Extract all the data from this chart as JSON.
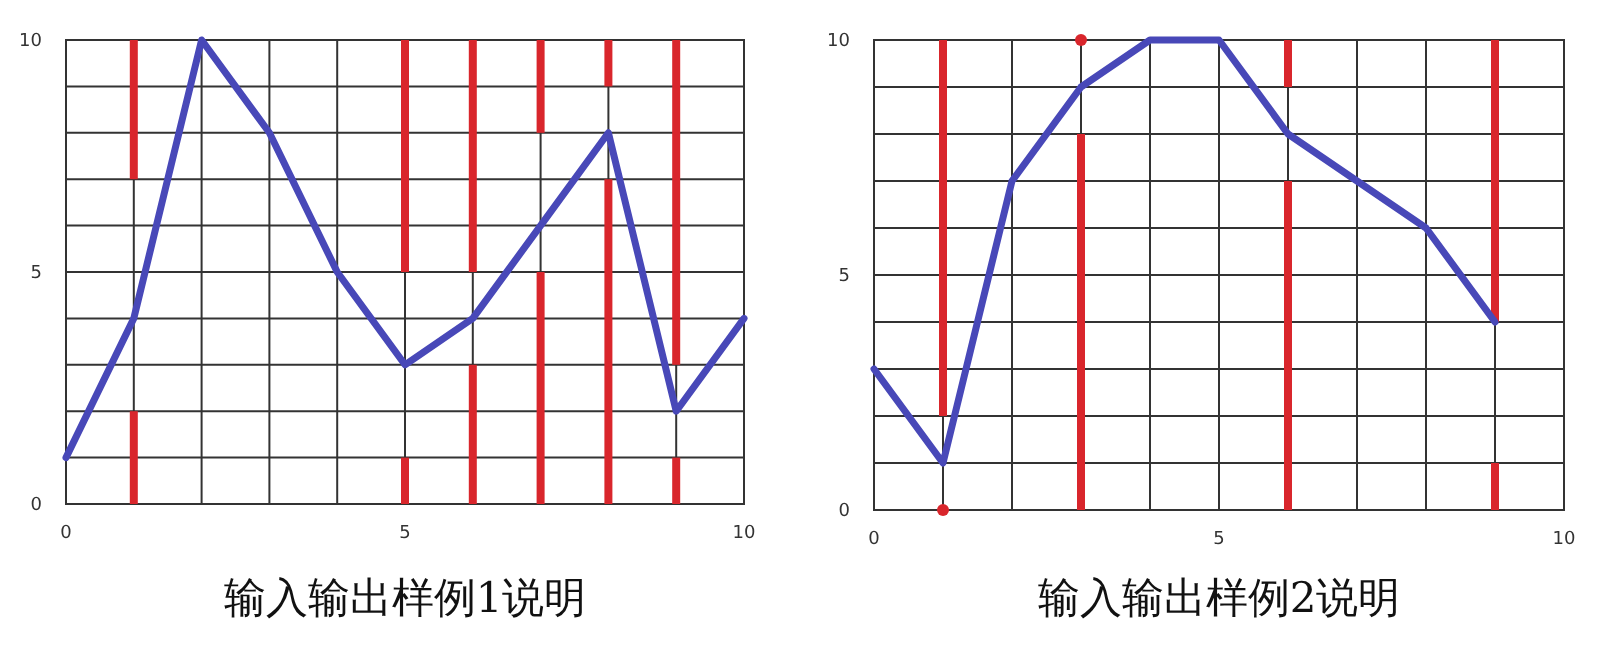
{
  "chart_data": [
    {
      "type": "line",
      "title": "输入输出样例1说明",
      "xlim": [
        0,
        10
      ],
      "ylim": [
        0,
        10
      ],
      "xticks": [
        0,
        {
          "value": 1,
          "label": null
        },
        {
          "value": 2,
          "label": null
        },
        {
          "value": 3,
          "label": null
        },
        {
          "value": 4,
          "label": null
        },
        5,
        {
          "value": 6,
          "label": null
        },
        {
          "value": 7,
          "label": null
        },
        {
          "value": 8,
          "label": null
        },
        {
          "value": 9,
          "label": null
        },
        10
      ],
      "yticks": [
        0,
        {
          "value": 1,
          "label": null
        },
        {
          "value": 2,
          "label": null
        },
        {
          "value": 3,
          "label": null
        },
        {
          "value": 4,
          "label": null
        },
        5,
        {
          "value": 6,
          "label": null
        },
        {
          "value": 7,
          "label": null
        },
        {
          "value": 8,
          "label": null
        },
        {
          "value": 9,
          "label": null
        },
        10
      ],
      "grid": true,
      "series": [
        {
          "type": "bar",
          "color": "#d9262c",
          "x": [
            1,
            5,
            6,
            7,
            8,
            9
          ],
          "base": [
            7,
            5,
            5,
            8,
            9,
            3
          ],
          "values": [
            3,
            5,
            5,
            2,
            1,
            7
          ]
        },
        {
          "type": "bar",
          "color": "#d9262c",
          "x": [
            1,
            5,
            6,
            7,
            8,
            9
          ],
          "base": [
            0,
            0,
            0,
            0,
            0,
            0
          ],
          "values": [
            2,
            1,
            3,
            5,
            7,
            1
          ]
        },
        {
          "color": "#4848b8",
          "x": [
            0,
            1,
            2,
            3,
            4,
            5,
            6,
            7,
            8,
            9,
            10
          ],
          "values": [
            1,
            4,
            10,
            8,
            5,
            3,
            4,
            6,
            8,
            2,
            4
          ]
        }
      ]
    },
    {
      "type": "line",
      "title": "输入输出样例2说明",
      "xlim": [
        0,
        10
      ],
      "ylim": [
        0,
        10
      ],
      "xticks": [
        0,
        {
          "value": 1,
          "label": null
        },
        {
          "value": 2,
          "label": null
        },
        {
          "value": 3,
          "label": null
        },
        {
          "value": 4,
          "label": null
        },
        5,
        {
          "value": 6,
          "label": null
        },
        {
          "value": 7,
          "label": null
        },
        {
          "value": 8,
          "label": null
        },
        {
          "value": 9,
          "label": null
        },
        10
      ],
      "yticks": [
        0,
        {
          "value": 1,
          "label": null
        },
        {
          "value": 2,
          "label": null
        },
        {
          "value": 3,
          "label": null
        },
        {
          "value": 4,
          "label": null
        },
        5,
        {
          "value": 6,
          "label": null
        },
        {
          "value": 7,
          "label": null
        },
        {
          "value": 8,
          "label": null
        },
        {
          "value": 9,
          "label": null
        },
        10
      ],
      "grid": true,
      "series": [
        {
          "type": "bar",
          "color": "#d9262c",
          "x": [
            1,
            6,
            9
          ],
          "base": [
            2,
            9,
            4
          ],
          "values": [
            8,
            1,
            6
          ]
        },
        {
          "type": "bar",
          "color": "#d9262c",
          "x": [
            3,
            6,
            9
          ],
          "base": [
            0,
            0,
            0
          ],
          "values": [
            8,
            7,
            1
          ]
        },
        {
          "type": "scatter",
          "color": "#d9262c",
          "x": [
            1,
            3
          ],
          "values": [
            0,
            10
          ]
        },
        {
          "color": "#4848b8",
          "x": [
            0,
            1,
            2,
            3,
            4,
            5,
            6,
            7,
            8,
            9
          ],
          "values": [
            3,
            1,
            7,
            9,
            10,
            10,
            8,
            7,
            6,
            4
          ]
        }
      ]
    }
  ]
}
